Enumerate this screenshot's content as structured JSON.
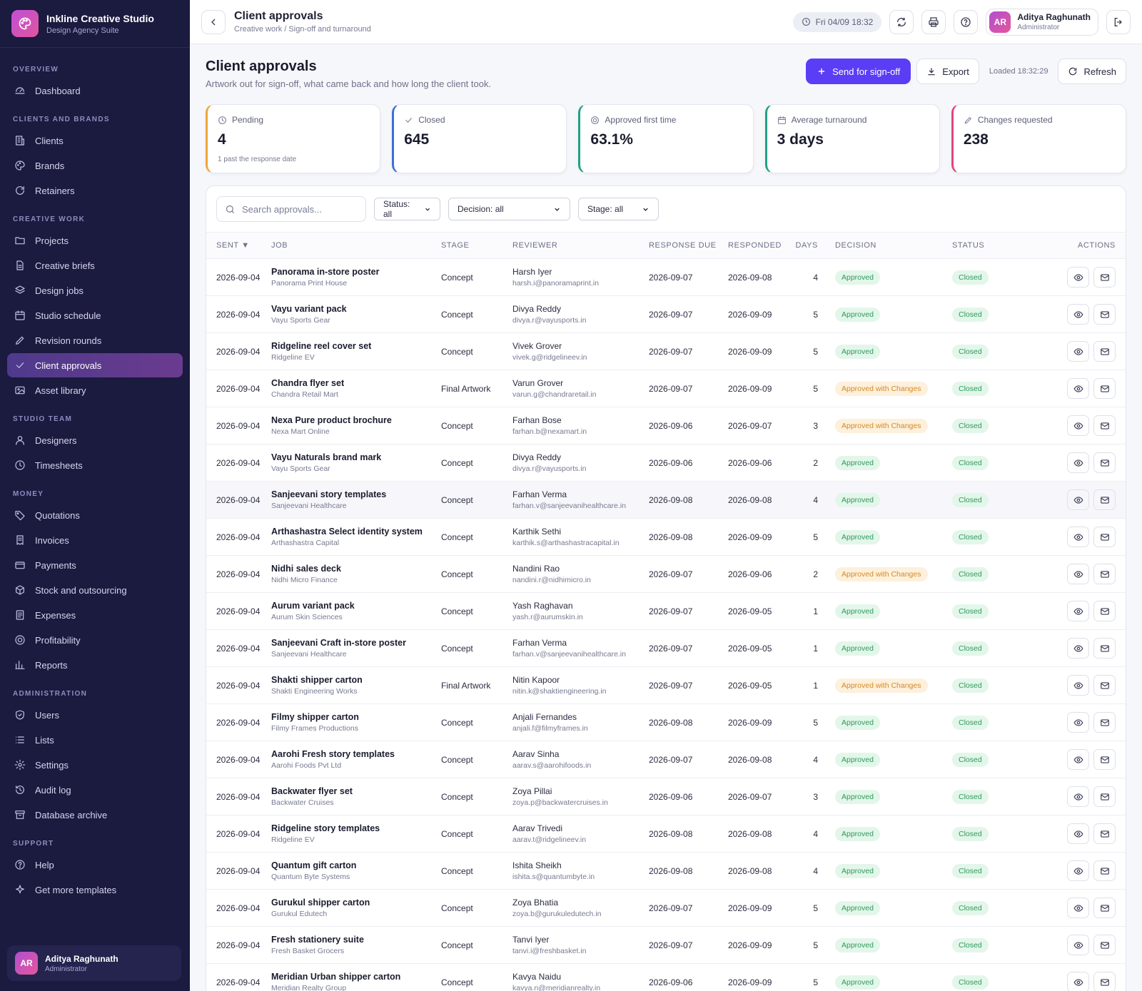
{
  "app": {
    "name": "Inkline Creative Studio",
    "subtitle": "Design Agency Suite"
  },
  "sidebar": {
    "sections": [
      {
        "title": "OVERVIEW",
        "items": [
          {
            "label": "Dashboard",
            "icon": "dashboard-icon"
          }
        ]
      },
      {
        "title": "CLIENTS AND BRANDS",
        "items": [
          {
            "label": "Clients",
            "icon": "building-icon"
          },
          {
            "label": "Brands",
            "icon": "palette-icon"
          },
          {
            "label": "Retainers",
            "icon": "refresh-icon"
          }
        ]
      },
      {
        "title": "CREATIVE WORK",
        "items": [
          {
            "label": "Projects",
            "icon": "folder-icon"
          },
          {
            "label": "Creative briefs",
            "icon": "document-icon"
          },
          {
            "label": "Design jobs",
            "icon": "layers-icon"
          },
          {
            "label": "Studio schedule",
            "icon": "calendar-icon"
          },
          {
            "label": "Revision rounds",
            "icon": "pencil-icon"
          },
          {
            "label": "Client approvals",
            "icon": "check-icon",
            "active": true
          },
          {
            "label": "Asset library",
            "icon": "image-icon"
          }
        ]
      },
      {
        "title": "STUDIO TEAM",
        "items": [
          {
            "label": "Designers",
            "icon": "user-icon"
          },
          {
            "label": "Timesheets",
            "icon": "clock-icon"
          }
        ]
      },
      {
        "title": "MONEY",
        "items": [
          {
            "label": "Quotations",
            "icon": "tag-icon"
          },
          {
            "label": "Invoices",
            "icon": "receipt-icon"
          },
          {
            "label": "Payments",
            "icon": "card-icon"
          },
          {
            "label": "Stock and outsourcing",
            "icon": "box-icon"
          },
          {
            "label": "Expenses",
            "icon": "list-doc-icon"
          },
          {
            "label": "Profitability",
            "icon": "target-icon"
          },
          {
            "label": "Reports",
            "icon": "bar-chart-icon"
          }
        ]
      },
      {
        "title": "ADMINISTRATION",
        "items": [
          {
            "label": "Users",
            "icon": "shield-icon"
          },
          {
            "label": "Lists",
            "icon": "list-icon"
          },
          {
            "label": "Settings",
            "icon": "gear-icon"
          },
          {
            "label": "Audit log",
            "icon": "history-icon"
          },
          {
            "label": "Database archive",
            "icon": "archive-icon"
          }
        ]
      },
      {
        "title": "SUPPORT",
        "items": [
          {
            "label": "Help",
            "icon": "help-icon"
          },
          {
            "label": "Get more templates",
            "icon": "sparkle-icon"
          }
        ]
      }
    ],
    "user": {
      "initials": "AR",
      "name": "Aditya Raghunath",
      "role": "Administrator"
    }
  },
  "topbar": {
    "title": "Client approvals",
    "breadcrumb": "Creative work / Sign-off and turnaround",
    "clock": "Fri 04/09 18:32",
    "user": {
      "initials": "AR",
      "name": "Aditya Raghunath",
      "role": "Administrator"
    }
  },
  "page": {
    "title": "Client approvals",
    "subtitle": "Artwork out for sign-off, what came back and how long the client took.",
    "send_label": "Send for sign-off",
    "export_label": "Export",
    "loaded": "Loaded 18:32:29",
    "refresh_label": "Refresh"
  },
  "kpis": [
    {
      "label": "Pending",
      "value": "4",
      "note": "1 past the response date",
      "color": "#f0a53a",
      "icon": "clock-icon"
    },
    {
      "label": "Closed",
      "value": "645",
      "note": "",
      "color": "#3d6fd8",
      "icon": "check-icon"
    },
    {
      "label": "Approved first time",
      "value": "63.1%",
      "note": "",
      "color": "#22a085",
      "icon": "target-icon"
    },
    {
      "label": "Average turnaround",
      "value": "3 days",
      "note": "",
      "color": "#22a085",
      "icon": "calendar-icon"
    },
    {
      "label": "Changes requested",
      "value": "238",
      "note": "",
      "color": "#e2457a",
      "icon": "pencil-icon"
    }
  ],
  "filters": {
    "search_placeholder": "Search approvals...",
    "status": "Status: all",
    "decision": "Decision: all",
    "stage": "Stage: all"
  },
  "table": {
    "columns": [
      "SENT ▼",
      "JOB",
      "STAGE",
      "REVIEWER",
      "RESPONSE DUE",
      "RESPONDED",
      "DAYS",
      "DECISION",
      "STATUS",
      "ACTIONS"
    ],
    "rows": [
      {
        "sent": "2026-09-04",
        "job": "Panorama in-store poster",
        "client": "Panorama Print House",
        "stage": "Concept",
        "reviewer": "Harsh Iyer",
        "email": "harsh.i@panoramaprint.in",
        "due": "2026-09-07",
        "responded": "2026-09-08",
        "days": "4",
        "decision": "Approved",
        "status": "Closed"
      },
      {
        "sent": "2026-09-04",
        "job": "Vayu variant pack",
        "client": "Vayu Sports Gear",
        "stage": "Concept",
        "reviewer": "Divya Reddy",
        "email": "divya.r@vayusports.in",
        "due": "2026-09-07",
        "responded": "2026-09-09",
        "days": "5",
        "decision": "Approved",
        "status": "Closed"
      },
      {
        "sent": "2026-09-04",
        "job": "Ridgeline reel cover set",
        "client": "Ridgeline EV",
        "stage": "Concept",
        "reviewer": "Vivek Grover",
        "email": "vivek.g@ridgelineev.in",
        "due": "2026-09-07",
        "responded": "2026-09-09",
        "days": "5",
        "decision": "Approved",
        "status": "Closed"
      },
      {
        "sent": "2026-09-04",
        "job": "Chandra flyer set",
        "client": "Chandra Retail Mart",
        "stage": "Final Artwork",
        "reviewer": "Varun Grover",
        "email": "varun.g@chandraretail.in",
        "due": "2026-09-07",
        "responded": "2026-09-09",
        "days": "5",
        "decision": "Approved with Changes",
        "status": "Closed"
      },
      {
        "sent": "2026-09-04",
        "job": "Nexa Pure product brochure",
        "client": "Nexa Mart Online",
        "stage": "Concept",
        "reviewer": "Farhan Bose",
        "email": "farhan.b@nexamart.in",
        "due": "2026-09-06",
        "responded": "2026-09-07",
        "days": "3",
        "decision": "Approved with Changes",
        "status": "Closed"
      },
      {
        "sent": "2026-09-04",
        "job": "Vayu Naturals brand mark",
        "client": "Vayu Sports Gear",
        "stage": "Concept",
        "reviewer": "Divya Reddy",
        "email": "divya.r@vayusports.in",
        "due": "2026-09-06",
        "responded": "2026-09-06",
        "days": "2",
        "decision": "Approved",
        "status": "Closed"
      },
      {
        "sent": "2026-09-04",
        "job": "Sanjeevani story templates",
        "client": "Sanjeevani Healthcare",
        "stage": "Concept",
        "reviewer": "Farhan Verma",
        "email": "farhan.v@sanjeevanihealthcare.in",
        "due": "2026-09-08",
        "responded": "2026-09-08",
        "days": "4",
        "decision": "Approved",
        "status": "Closed",
        "hover": true
      },
      {
        "sent": "2026-09-04",
        "job": "Arthashastra Select identity system",
        "client": "Arthashastra Capital",
        "stage": "Concept",
        "reviewer": "Karthik Sethi",
        "email": "karthik.s@arthashastracapital.in",
        "due": "2026-09-08",
        "responded": "2026-09-09",
        "days": "5",
        "decision": "Approved",
        "status": "Closed"
      },
      {
        "sent": "2026-09-04",
        "job": "Nidhi sales deck",
        "client": "Nidhi Micro Finance",
        "stage": "Concept",
        "reviewer": "Nandini Rao",
        "email": "nandini.r@nidhimicro.in",
        "due": "2026-09-07",
        "responded": "2026-09-06",
        "days": "2",
        "decision": "Approved with Changes",
        "status": "Closed"
      },
      {
        "sent": "2026-09-04",
        "job": "Aurum variant pack",
        "client": "Aurum Skin Sciences",
        "stage": "Concept",
        "reviewer": "Yash Raghavan",
        "email": "yash.r@aurumskin.in",
        "due": "2026-09-07",
        "responded": "2026-09-05",
        "days": "1",
        "decision": "Approved",
        "status": "Closed"
      },
      {
        "sent": "2026-09-04",
        "job": "Sanjeevani Craft in-store poster",
        "client": "Sanjeevani Healthcare",
        "stage": "Concept",
        "reviewer": "Farhan Verma",
        "email": "farhan.v@sanjeevanihealthcare.in",
        "due": "2026-09-07",
        "responded": "2026-09-05",
        "days": "1",
        "decision": "Approved",
        "status": "Closed"
      },
      {
        "sent": "2026-09-04",
        "job": "Shakti shipper carton",
        "client": "Shakti Engineering Works",
        "stage": "Final Artwork",
        "reviewer": "Nitin Kapoor",
        "email": "nitin.k@shaktiengineering.in",
        "due": "2026-09-07",
        "responded": "2026-09-05",
        "days": "1",
        "decision": "Approved with Changes",
        "status": "Closed"
      },
      {
        "sent": "2026-09-04",
        "job": "Filmy shipper carton",
        "client": "Filmy Frames Productions",
        "stage": "Concept",
        "reviewer": "Anjali Fernandes",
        "email": "anjali.f@filmyframes.in",
        "due": "2026-09-08",
        "responded": "2026-09-09",
        "days": "5",
        "decision": "Approved",
        "status": "Closed"
      },
      {
        "sent": "2026-09-04",
        "job": "Aarohi Fresh story templates",
        "client": "Aarohi Foods Pvt Ltd",
        "stage": "Concept",
        "reviewer": "Aarav Sinha",
        "email": "aarav.s@aarohifoods.in",
        "due": "2026-09-07",
        "responded": "2026-09-08",
        "days": "4",
        "decision": "Approved",
        "status": "Closed"
      },
      {
        "sent": "2026-09-04",
        "job": "Backwater flyer set",
        "client": "Backwater Cruises",
        "stage": "Concept",
        "reviewer": "Zoya Pillai",
        "email": "zoya.p@backwatercruises.in",
        "due": "2026-09-06",
        "responded": "2026-09-07",
        "days": "3",
        "decision": "Approved",
        "status": "Closed"
      },
      {
        "sent": "2026-09-04",
        "job": "Ridgeline story templates",
        "client": "Ridgeline EV",
        "stage": "Concept",
        "reviewer": "Aarav Trivedi",
        "email": "aarav.t@ridgelineev.in",
        "due": "2026-09-08",
        "responded": "2026-09-08",
        "days": "4",
        "decision": "Approved",
        "status": "Closed"
      },
      {
        "sent": "2026-09-04",
        "job": "Quantum gift carton",
        "client": "Quantum Byte Systems",
        "stage": "Concept",
        "reviewer": "Ishita Sheikh",
        "email": "ishita.s@quantumbyte.in",
        "due": "2026-09-08",
        "responded": "2026-09-08",
        "days": "4",
        "decision": "Approved",
        "status": "Closed"
      },
      {
        "sent": "2026-09-04",
        "job": "Gurukul shipper carton",
        "client": "Gurukul Edutech",
        "stage": "Concept",
        "reviewer": "Zoya Bhatia",
        "email": "zoya.b@gurukuledutech.in",
        "due": "2026-09-07",
        "responded": "2026-09-09",
        "days": "5",
        "decision": "Approved",
        "status": "Closed"
      },
      {
        "sent": "2026-09-04",
        "job": "Fresh stationery suite",
        "client": "Fresh Basket Grocers",
        "stage": "Concept",
        "reviewer": "Tanvi Iyer",
        "email": "tanvi.i@freshbasket.in",
        "due": "2026-09-07",
        "responded": "2026-09-09",
        "days": "5",
        "decision": "Approved",
        "status": "Closed"
      },
      {
        "sent": "2026-09-04",
        "job": "Meridian Urban shipper carton",
        "client": "Meridian Realty Group",
        "stage": "Concept",
        "reviewer": "Kavya Naidu",
        "email": "kavya.n@meridianrealty.in",
        "due": "2026-09-06",
        "responded": "2026-09-09",
        "days": "5",
        "decision": "Approved",
        "status": "Closed"
      }
    ]
  }
}
